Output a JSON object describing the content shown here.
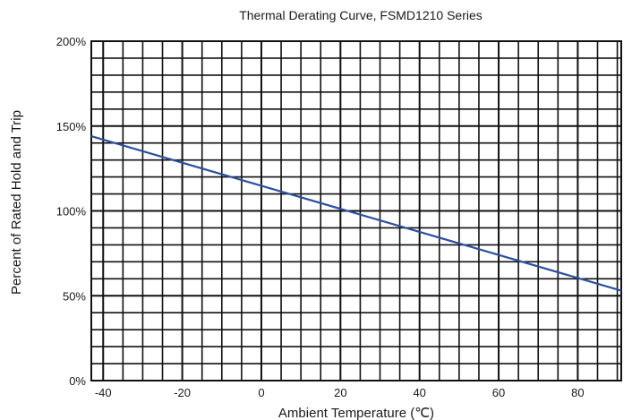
{
  "chart_data": {
    "type": "line",
    "title": "Thermal Derating Curve, FSMD1210 Series",
    "xlabel": "Ambient Temperature (℃)",
    "ylabel": "Percent of Rated Hold and Trip",
    "xlim": [
      -43,
      91
    ],
    "ylim": [
      0,
      200
    ],
    "x_ticks": [
      -40,
      -20,
      0,
      20,
      40,
      60,
      80
    ],
    "x_tick_labels": [
      "-40",
      "-20",
      "0",
      "20",
      "40",
      "60",
      "80"
    ],
    "y_ticks": [
      0,
      50,
      100,
      150,
      200
    ],
    "y_tick_labels": [
      "0%",
      "50%",
      "100%",
      "150%",
      "200%"
    ],
    "grid": true,
    "series": [
      {
        "color": "#2f4f9e",
        "x": [
          -43,
          91
        ],
        "y": [
          144,
          53
        ]
      }
    ]
  }
}
